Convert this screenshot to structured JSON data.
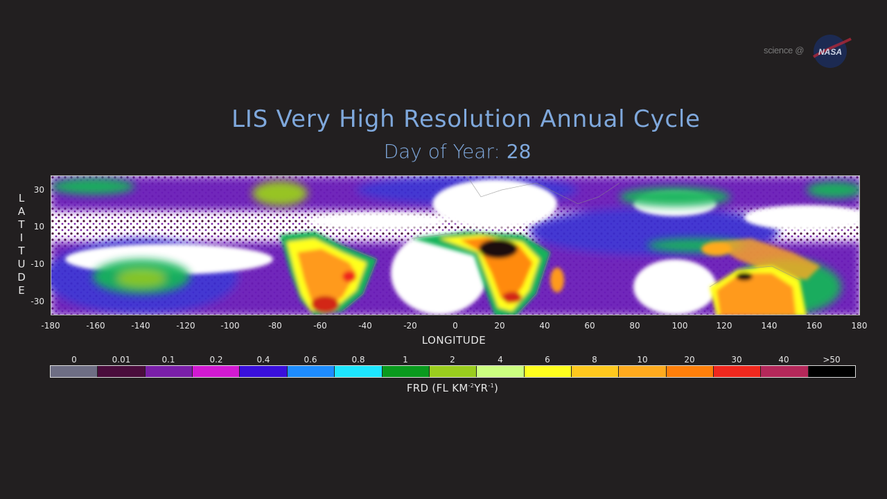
{
  "logo": {
    "text": "science @",
    "agency": "NASA"
  },
  "title": "LIS Very High Resolution Annual Cycle",
  "subtitle": {
    "label": "Day of Year:",
    "value": "28"
  },
  "map": {
    "y_axis": {
      "label_letters": [
        "L",
        "A",
        "T",
        "I",
        "T",
        "U",
        "D",
        "E"
      ],
      "ticks": [
        "30",
        "10",
        "-10",
        "-30"
      ]
    },
    "x_axis": {
      "label": "LONGITUDE",
      "ticks": [
        "-180",
        "-160",
        "-140",
        "-120",
        "-100",
        "-80",
        "-60",
        "-40",
        "-20",
        "0",
        "20",
        "40",
        "60",
        "80",
        "100",
        "120",
        "140",
        "160",
        "180"
      ]
    }
  },
  "colorbar": {
    "labels": [
      "0",
      "0.01",
      "0.1",
      "0.2",
      "0.4",
      "0.6",
      "0.8",
      "1",
      "2",
      "4",
      "6",
      "8",
      "10",
      "20",
      "30",
      "40",
      ">50"
    ],
    "colors": [
      "#6e6e84",
      "#4a0d3c",
      "#7a1fa8",
      "#d21ad2",
      "#3a10dc",
      "#1e8cff",
      "#1ee6ff",
      "#0a9a1e",
      "#9acd1e",
      "#ccff80",
      "#ffff1e",
      "#ffc81e",
      "#ffaa1e",
      "#ff7f0a",
      "#f0281e",
      "#b4285a",
      "#000000"
    ],
    "title_main": "FRD (FL KM",
    "title_sup1": "-2",
    "title_mid": "YR",
    "title_sup2": "-1",
    "title_end": ")"
  }
}
